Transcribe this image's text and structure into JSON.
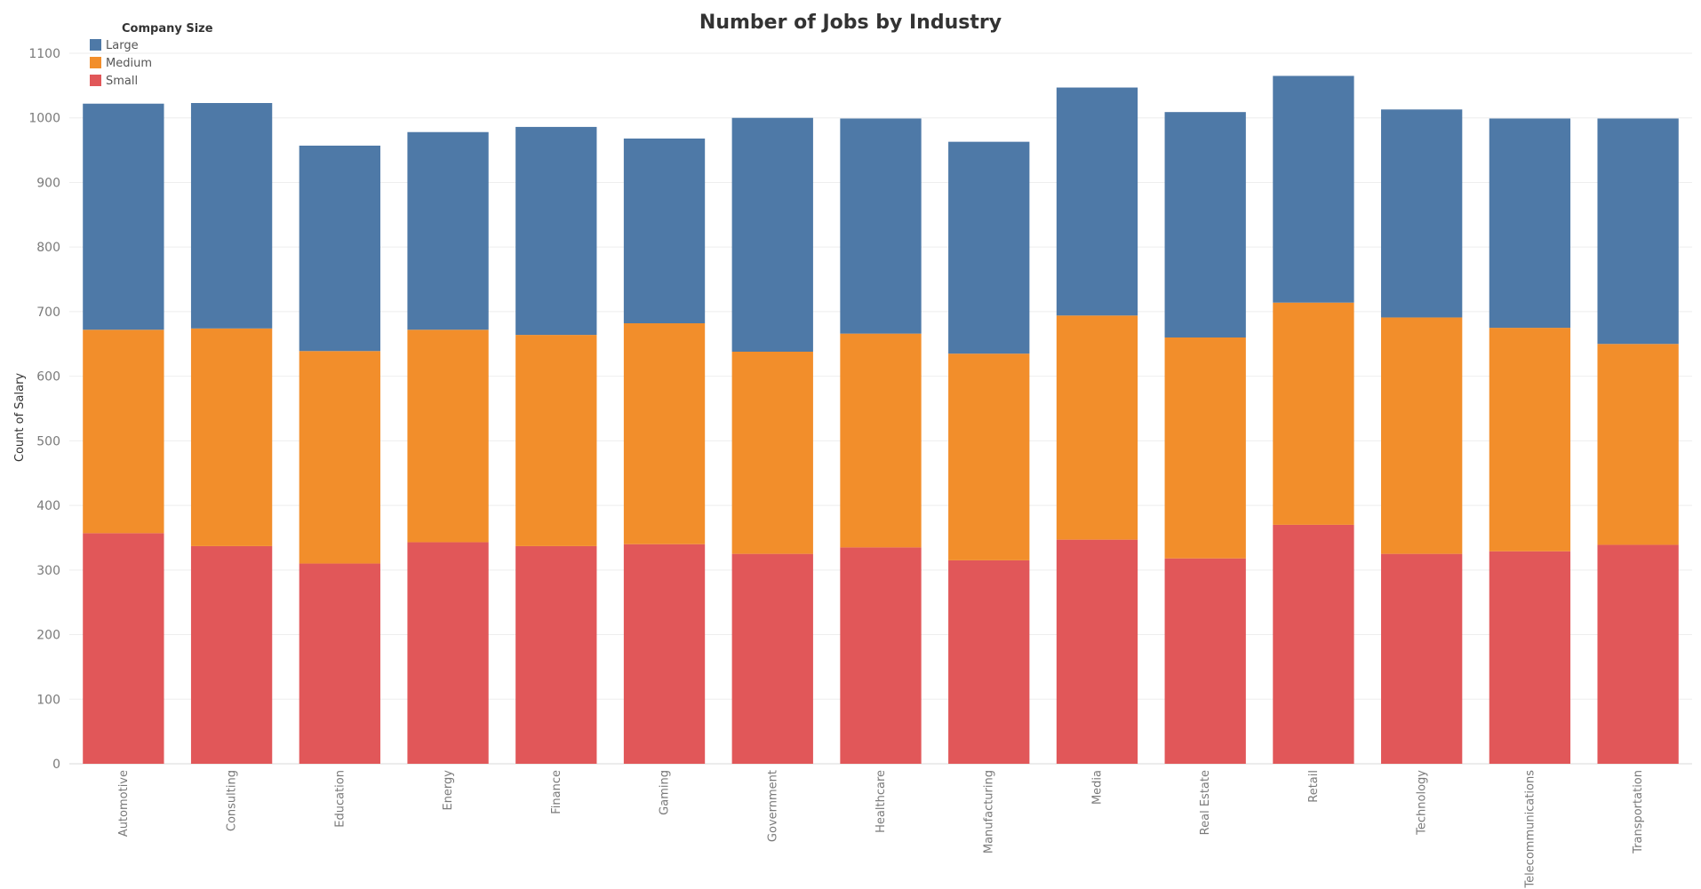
{
  "chart_data": {
    "type": "bar",
    "stacked": true,
    "title": "Number of Jobs by Industry",
    "xlabel": "",
    "ylabel": "Count of Salary",
    "ylim": [
      0,
      1100
    ],
    "yticks": [
      0,
      100,
      200,
      300,
      400,
      500,
      600,
      700,
      800,
      900,
      1000,
      1100
    ],
    "grid": true,
    "legend": {
      "title": "Company Size",
      "placement": "top-left"
    },
    "categories": [
      "Automotive",
      "Consulting",
      "Education",
      "Energy",
      "Finance",
      "Gaming",
      "Government",
      "Healthcare",
      "Manufacturing",
      "Media",
      "Real Estate",
      "Retail",
      "Technology",
      "Telecommunications",
      "Transportation"
    ],
    "series": [
      {
        "name": "Small",
        "color": "#e15759",
        "values": [
          357,
          337,
          310,
          343,
          337,
          340,
          325,
          335,
          315,
          347,
          318,
          370,
          325,
          329,
          339
        ]
      },
      {
        "name": "Medium",
        "color": "#f28e2b",
        "values": [
          315,
          337,
          329,
          329,
          327,
          342,
          313,
          331,
          320,
          347,
          342,
          344,
          366,
          346,
          311
        ]
      },
      {
        "name": "Large",
        "color": "#4e79a7",
        "values": [
          350,
          349,
          318,
          306,
          322,
          286,
          362,
          333,
          328,
          353,
          349,
          351,
          322,
          324,
          349
        ]
      }
    ],
    "legend_order": [
      "Large",
      "Medium",
      "Small"
    ]
  }
}
